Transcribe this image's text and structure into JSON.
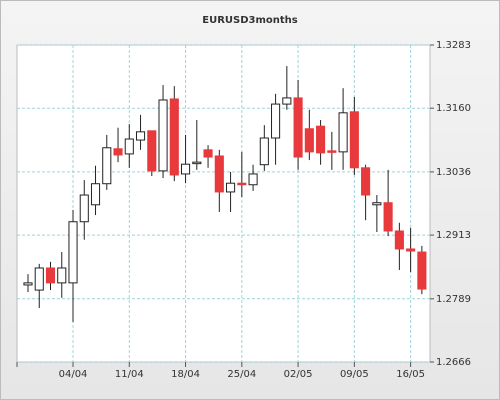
{
  "chart_data": {
    "type": "candlestick",
    "title": "EURUSD3months",
    "categories": [
      null,
      null,
      null,
      null,
      "04/04",
      null,
      null,
      null,
      null,
      "11/04",
      null,
      null,
      null,
      null,
      "18/04",
      null,
      null,
      null,
      null,
      "25/04",
      null,
      null,
      null,
      null,
      "02/05",
      null,
      null,
      null,
      null,
      "09/05",
      null,
      null,
      null,
      null,
      "16/05",
      null
    ],
    "open": [
      1.2816,
      1.2806,
      1.2849,
      1.282,
      1.282,
      1.2939,
      1.2972,
      1.3013,
      1.3081,
      1.3071,
      1.3098,
      1.3116,
      1.3038,
      1.3178,
      1.3032,
      1.3053,
      1.3079,
      1.3067,
      1.2997,
      1.3014,
      1.3011,
      1.305,
      1.3102,
      1.3168,
      1.318,
      1.312,
      1.3125,
      1.3077,
      1.3075,
      1.3153,
      1.3044,
      1.2972,
      1.2976,
      1.2921,
      1.2886,
      1.288
    ],
    "high": [
      1.2837,
      1.2857,
      1.2861,
      1.288,
      1.2962,
      1.302,
      1.3048,
      1.3108,
      1.3122,
      1.3129,
      1.3147,
      1.3116,
      1.3205,
      1.3203,
      1.3108,
      1.3137,
      1.3088,
      1.3079,
      1.3036,
      1.3075,
      1.305,
      1.3127,
      1.3188,
      1.3242,
      1.3215,
      1.3157,
      1.3137,
      1.3114,
      1.3199,
      1.3182,
      1.305,
      1.2991,
      1.304,
      1.2937,
      1.2927,
      1.2892
    ],
    "low": [
      1.2802,
      1.2771,
      1.2806,
      1.2791,
      1.2744,
      1.2904,
      1.2952,
      1.3001,
      1.3055,
      1.3044,
      1.3079,
      1.3028,
      1.3024,
      1.3018,
      1.3014,
      1.304,
      1.3044,
      1.2958,
      1.2958,
      1.2987,
      1.2999,
      1.3038,
      1.305,
      1.3157,
      1.304,
      1.3059,
      1.305,
      1.304,
      1.304,
      1.303,
      1.2942,
      1.2919,
      1.2911,
      1.2845,
      1.2841,
      1.2798
    ],
    "close": [
      1.282,
      1.2849,
      1.282,
      1.2849,
      1.2939,
      1.2991,
      1.3013,
      1.3083,
      1.3069,
      1.31,
      1.3114,
      1.3038,
      1.3176,
      1.303,
      1.3051,
      1.3055,
      1.3065,
      1.2997,
      1.3014,
      1.3011,
      1.3032,
      1.3102,
      1.3168,
      1.318,
      1.3065,
      1.3075,
      1.3073,
      1.3075,
      1.3151,
      1.3044,
      1.2991,
      1.2976,
      1.2921,
      1.2886,
      1.2882,
      1.2808
    ],
    "up_color": "#ffffff",
    "down_color": "#e8393c",
    "ylim": [
      1.2666,
      1.3283
    ],
    "yticks": [
      1.2666,
      1.2789,
      1.2913,
      1.3036,
      {
        "value": 1.316,
        "label": "1.3160"
      },
      1.3283
    ],
    "grid": true
  }
}
